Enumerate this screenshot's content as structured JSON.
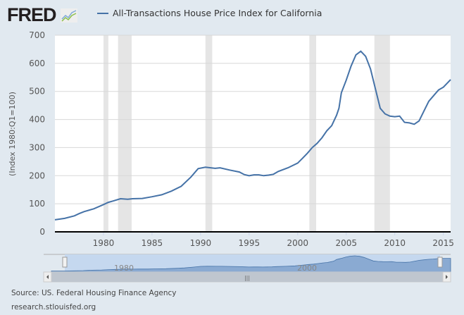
{
  "header": {
    "logo_text": "FRED",
    "legend_label": "All-Transactions House Price Index for California"
  },
  "footer": {
    "source": "Source: US. Federal Housing Finance Agency",
    "site": "research.stlouisfed.org"
  },
  "colors": {
    "series": "#4572a7",
    "recession": "#e5e5e5",
    "background": "#e1e9f0",
    "navigator_fill": "#8aaad2"
  },
  "chart_data": {
    "type": "line",
    "title": "",
    "xlabel": "",
    "ylabel": "(Index 1980:Q1=100)",
    "xlim": [
      1975,
      2015.75
    ],
    "ylim": [
      0,
      700
    ],
    "yticks": [
      0,
      100,
      200,
      300,
      400,
      500,
      600,
      700
    ],
    "xticks": [
      1980,
      1985,
      1990,
      1995,
      2000,
      2005,
      2010,
      2015
    ],
    "grid": true,
    "legend": "top",
    "recessions": [
      [
        1980.0,
        1980.5
      ],
      [
        1981.5,
        1982.9
      ],
      [
        1990.5,
        1991.2
      ],
      [
        2001.2,
        2001.9
      ],
      [
        2007.9,
        2009.5
      ]
    ],
    "navigator_labels": [
      "1980",
      "2000"
    ],
    "series": [
      {
        "name": "All-Transactions House Price Index for California",
        "x": [
          1975,
          1976,
          1977,
          1977.5,
          1978,
          1979,
          1980,
          1980.5,
          1981,
          1981.75,
          1982.5,
          1983,
          1984,
          1985,
          1986,
          1987,
          1988,
          1989,
          1989.75,
          1990.5,
          1991.5,
          1992,
          1993,
          1994,
          1994.5,
          1995,
          1995.5,
          1996,
          1996.5,
          1997,
          1997.5,
          1998,
          1999,
          2000,
          2000.5,
          2001,
          2001.5,
          2002,
          2002.5,
          2003,
          2003.5,
          2004,
          2004.25,
          2004.5,
          2005,
          2005.5,
          2006,
          2006.5,
          2007,
          2007.5,
          2008,
          2008.5,
          2009,
          2009.5,
          2010,
          2010.5,
          2011,
          2011.5,
          2012,
          2012.5,
          2013,
          2013.5,
          2014,
          2014.5,
          2015,
          2015.75
        ],
        "y": [
          43,
          48,
          57,
          65,
          72,
          82,
          97,
          105,
          110,
          118,
          116,
          118,
          119,
          125,
          132,
          145,
          162,
          195,
          225,
          230,
          226,
          228,
          220,
          213,
          204,
          200,
          203,
          203,
          200,
          202,
          205,
          215,
          228,
          245,
          262,
          280,
          300,
          315,
          335,
          360,
          378,
          415,
          440,
          495,
          540,
          590,
          630,
          643,
          625,
          580,
          510,
          440,
          420,
          412,
          410,
          412,
          390,
          388,
          383,
          395,
          430,
          465,
          485,
          505,
          515,
          542
        ]
      }
    ]
  }
}
